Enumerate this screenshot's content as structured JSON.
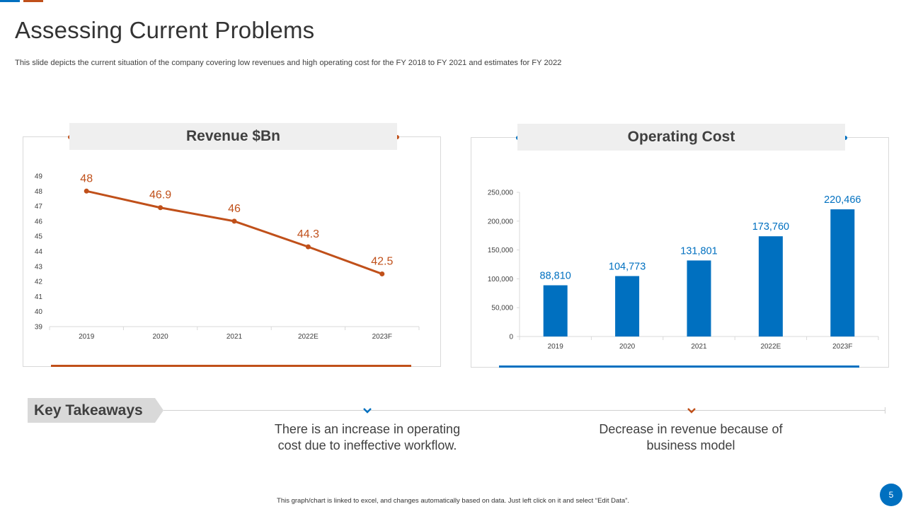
{
  "slide": {
    "title": "Assessing Current Problems",
    "subtitle": "This slide depicts the current situation of the company covering low revenues and high operating cost for the FY 2018 to FY 2021 and estimates for FY 2022",
    "footer": "This graph/chart is linked to excel, and changes automatically based on data. Just left click on it and select “Edit Data”.",
    "page_number": "5"
  },
  "colors": {
    "orange": "#c0501a",
    "blue": "#0070c0",
    "header_bg": "#efefef"
  },
  "chart_data": [
    {
      "type": "line",
      "title": "Revenue $Bn",
      "categories": [
        "2019",
        "2020",
        "2021",
        "2022E",
        "2023F"
      ],
      "values": [
        48,
        46.9,
        46,
        44.3,
        42.5
      ],
      "data_labels": [
        "48",
        "46.9",
        "46",
        "44.3",
        "42.5"
      ],
      "ylim": [
        39,
        49
      ],
      "yticks": [
        39,
        40,
        41,
        42,
        43,
        44,
        45,
        46,
        47,
        48,
        49
      ],
      "color": "#c0501a",
      "xlabel": "",
      "ylabel": "",
      "grid": false
    },
    {
      "type": "bar",
      "title": "Operating Cost",
      "categories": [
        "2019",
        "2020",
        "2021",
        "2022E",
        "2023F"
      ],
      "values": [
        88810,
        104773,
        131801,
        173760,
        220466
      ],
      "data_labels": [
        "88,810",
        "104,773",
        "131,801",
        "173,760",
        "220,466"
      ],
      "ylim": [
        0,
        250000
      ],
      "yticks": [
        "0",
        "50,000",
        "100,000",
        "150,000",
        "200,000",
        "250,000"
      ],
      "color": "#0070c0",
      "xlabel": "",
      "ylabel": "",
      "grid": false
    }
  ],
  "takeaways": {
    "heading": "Key Takeaways",
    "items": [
      {
        "text": "There is an increase in operating cost due to ineffective workflow.",
        "icon": "chevron-down-icon",
        "color": "#0070c0"
      },
      {
        "text": "Decrease in revenue because of business model",
        "icon": "chevron-down-icon",
        "color": "#c0501a"
      }
    ]
  }
}
